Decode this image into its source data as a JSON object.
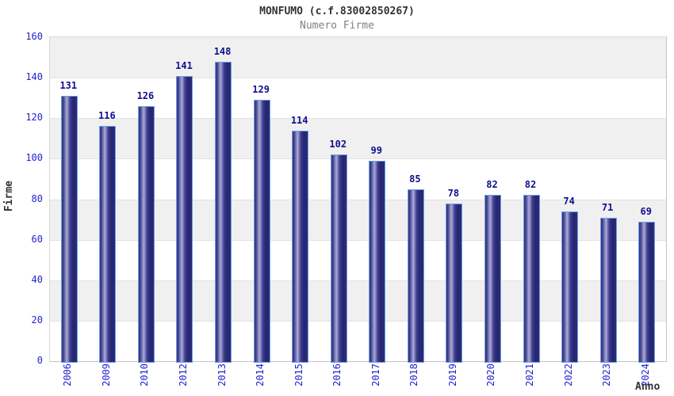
{
  "header": {
    "title": "MONFUMO (c.f.83002850267)",
    "subtitle": "Numero Firme"
  },
  "chart_data": {
    "type": "bar",
    "title": "MONFUMO (c.f.83002850267)",
    "subtitle": "Numero Firme",
    "categories": [
      "2006",
      "2009",
      "2010",
      "2012",
      "2013",
      "2014",
      "2015",
      "2016",
      "2017",
      "2018",
      "2019",
      "2020",
      "2021",
      "2022",
      "2023",
      "2024"
    ],
    "values": [
      131,
      116,
      126,
      141,
      148,
      129,
      114,
      102,
      99,
      85,
      78,
      82,
      82,
      74,
      71,
      69
    ],
    "xlabel": "Anno",
    "ylabel": "Firme",
    "ylim": [
      0,
      160
    ],
    "ytick_step": 20,
    "yticks": [
      0,
      20,
      40,
      60,
      80,
      100,
      120,
      140,
      160
    ],
    "grid": "alternating-horizontal-bands",
    "legend_position": "none",
    "colors": {
      "band_gray": "#f0f0f0",
      "band_white": "#ffffff",
      "band_line": "#e2e2e2",
      "bar_border": "#6c9fe8",
      "bar_dark": "#2b2b76",
      "bar_highlight": "#aaaad8",
      "tick_label": "#2323cd",
      "value_label": "#0f0f8f",
      "title_color": "#333333",
      "subtitle_color": "#808080"
    }
  }
}
